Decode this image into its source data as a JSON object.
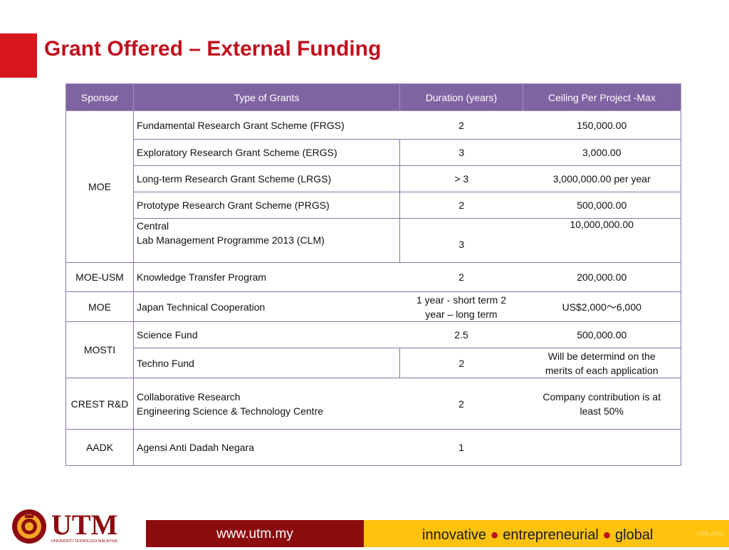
{
  "slide": {
    "title": "Grant Offered – External Funding"
  },
  "table": {
    "headers": {
      "sponsor": "Sponsor",
      "type": "Type of Grants",
      "duration": "Duration (years)",
      "ceiling": "Ceiling Per Project -Max"
    },
    "groups": [
      {
        "sponsor": "MOE"
      },
      {
        "sponsor": "MOE-USM"
      },
      {
        "sponsor": "MOE"
      },
      {
        "sponsor": "MOSTI"
      },
      {
        "sponsor": "CREST R&D"
      },
      {
        "sponsor": "AADK"
      }
    ],
    "rows": [
      {
        "type": "Fundamental Research Grant Scheme (FRGS)",
        "duration": "2",
        "ceiling": "150,000.00"
      },
      {
        "type": "Exploratory Research Grant Scheme (ERGS)",
        "duration": "3",
        "ceiling": "3,000.00"
      },
      {
        "type": "Long-term Research Grant Scheme (LRGS)",
        "duration": "> 3",
        "ceiling": "3,000,000.00 per year"
      },
      {
        "type": "Prototype Research Grant Scheme (PRGS)",
        "duration": "2",
        "ceiling": "500,000.00"
      },
      {
        "type_line1": "Central",
        "type_line2": "Lab Management Programme 2013 (CLM)",
        "duration": "3",
        "ceiling": "10,000,000.00"
      },
      {
        "type": "Knowledge Transfer Program",
        "duration": "2",
        "ceiling": "200,000.00"
      },
      {
        "type": "Japan Technical Cooperation",
        "duration_line1": "1 year - short term 2",
        "duration_line2": "year – long term",
        "ceiling": "US$2,000～6,000"
      },
      {
        "type": "Science Fund",
        "duration": "2.5",
        "ceiling": "500,000.00"
      },
      {
        "type": "Techno Fund",
        "duration": "2",
        "ceiling_line1": "Will be determind on the",
        "ceiling_line2": "merits of each application"
      },
      {
        "type_line1": "Collaborative Research",
        "type_line2": "Engineering Science & Technology Centre",
        "duration": "2",
        "ceiling_line1": "Company contribution is at",
        "ceiling_line2": "least 50%"
      },
      {
        "type": "Agensi Anti Dadah Negara",
        "duration": "1",
        "ceiling": ""
      }
    ]
  },
  "footer": {
    "logo_text": "UTM",
    "logo_subtext": "UNIVERSITI TEKNOLOGI MALAYSIA",
    "url": "www.utm.my",
    "tag_1": "innovative",
    "tag_2": "entrepreneurial",
    "tag_3": "global",
    "dot": "●",
    "copyright": "©PK-AAM",
    "colors": {
      "maroon": "#8c0b0f",
      "gold": "#ffc20e",
      "red": "#c0101e",
      "purple": "#8064a2"
    }
  }
}
